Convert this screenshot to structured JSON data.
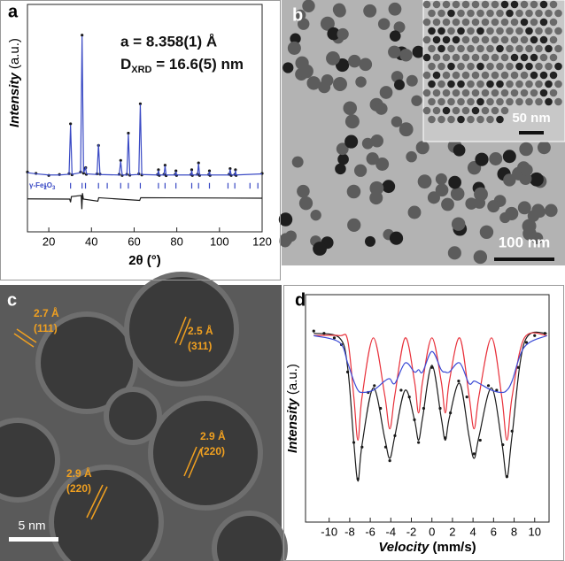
{
  "chart_data": [
    {
      "type": "line",
      "label": "a",
      "x_label": "2θ (°)",
      "y_label": [
        "Intensity",
        " (a.u.)"
      ],
      "annotations": [
        "a = 8.358(1) Å"
      ],
      "size_label": [
        "D",
        "XRD",
        " = 16.6(5) nm"
      ],
      "phase_label": [
        "γ-Fe",
        "2",
        "O",
        "3"
      ],
      "xlim": [
        10,
        120
      ],
      "xticks": [
        20,
        40,
        60,
        80,
        100,
        120
      ],
      "ylim": [
        0,
        100
      ],
      "series": [
        {
          "marker": true,
          "color": "#1a1a1a",
          "x": [
            10,
            14,
            20,
            25,
            29.5,
            30.2,
            30.9,
            34.9,
            35.6,
            36.3,
            37.0,
            37.3,
            37.6,
            42.6,
            43.3,
            44.0,
            53.0,
            53.7,
            54.4,
            56.6,
            57.3,
            58.0,
            62.2,
            62.9,
            63.6,
            71.0,
            71.4,
            71.8,
            74.0,
            74.5,
            75.0,
            79.3,
            79.6,
            79.9,
            86.7,
            87.0,
            87.3,
            89.7,
            90.2,
            90.7,
            95.0,
            95.3,
            95.6,
            104.5,
            105.0,
            105.5,
            107.2,
            107.5,
            107.8,
            120
          ],
          "values": [
            26.3,
            25.7,
            24.8,
            25.2,
            25.6,
            47.5,
            25.1,
            26.3,
            86.5,
            25.8,
            27.8,
            28.2,
            25.3,
            25.5,
            38,
            25.4,
            25.3,
            31.4,
            24.8,
            25.3,
            43.4,
            24.9,
            25.5,
            56.3,
            25,
            25.2,
            27.3,
            24.8,
            25.3,
            29.3,
            24.7,
            25.3,
            26.8,
            24.8,
            25.2,
            27.3,
            24.8,
            25.3,
            30.3,
            24.8,
            25.2,
            26.8,
            24.8,
            25.3,
            27.8,
            24.8,
            25.2,
            27.3,
            24.8,
            25.7
          ]
        },
        {
          "marker": false,
          "color": "#3949c4",
          "x": [
            10,
            14,
            20,
            25,
            29.5,
            30.2,
            30.9,
            34.9,
            35.6,
            36.3,
            37.0,
            37.3,
            37.6,
            42.6,
            43.3,
            44.0,
            53.0,
            53.7,
            54.4,
            56.6,
            57.3,
            58.0,
            62.2,
            62.9,
            63.6,
            71.0,
            71.4,
            71.8,
            74.0,
            74.5,
            75.0,
            79.3,
            79.6,
            79.9,
            86.7,
            87.0,
            87.3,
            89.7,
            90.2,
            90.7,
            95.0,
            95.3,
            95.6,
            104.5,
            105.0,
            105.5,
            107.2,
            107.5,
            107.8,
            120
          ],
          "values": [
            26,
            25.5,
            25,
            25,
            25.3,
            47,
            25.3,
            26,
            86,
            26,
            27.5,
            28.5,
            25.5,
            25.2,
            38.5,
            25.2,
            25,
            31,
            25,
            25,
            43,
            25,
            25.2,
            56,
            25.2,
            25,
            27,
            25,
            25,
            29,
            25,
            25,
            26.5,
            25,
            25,
            27,
            25,
            25,
            30,
            25,
            25,
            26.5,
            25,
            25,
            27.5,
            25,
            25,
            27,
            25,
            25.5
          ]
        },
        {
          "marker": false,
          "color": "#1a1a1a",
          "x": [
            10,
            29.8,
            30.2,
            30.6,
            35.2,
            35.5,
            35.8,
            36.2,
            43.0,
            43.4,
            62.6,
            63.1,
            120
          ],
          "values": [
            14.5,
            14.4,
            13,
            15.5,
            16,
            10,
            17,
            14.4,
            13.5,
            15,
            13.8,
            15,
            14.8
          ]
        }
      ],
      "bragg_ticks": [
        18.3,
        30.2,
        35.6,
        37.2,
        43.3,
        47.4,
        53.7,
        57.3,
        62.9,
        71.4,
        74.5,
        79.6,
        87.0,
        90.2,
        95.3,
        104.0,
        107.2,
        114.3,
        118.0
      ],
      "bragg_color": "#3949c4"
    },
    {
      "type": "line",
      "label": "d",
      "x_label": [
        "Velocity",
        " (mm/s)"
      ],
      "y_label": [
        "Intensity",
        " (a.u.)"
      ],
      "xlim": [
        -12.3,
        11.4
      ],
      "xticks": [
        -10,
        -8,
        -6,
        -4,
        -2,
        0,
        2,
        4,
        6,
        8,
        10
      ],
      "ylim": [
        0,
        100
      ],
      "series": [
        {
          "marker": true,
          "color": "#1a1a1a",
          "x": [
            -11.5,
            -10.5,
            -9.5,
            -8.8,
            -8.2,
            -7.6,
            -7.2,
            -6.8,
            -6.2,
            -5.6,
            -5,
            -4.5,
            -4.1,
            -3.6,
            -3,
            -2.2,
            -1.7,
            -1.3,
            -0.8,
            0,
            0.8,
            1.3,
            1.8,
            2.6,
            3.4,
            4.1,
            4.7,
            5.5,
            6.3,
            6.9,
            7.3,
            7.8,
            8.4,
            9.2,
            10,
            11
          ],
          "values": [
            84,
            83,
            81,
            78,
            66,
            35,
            19,
            33,
            57,
            60,
            50,
            33,
            27,
            38,
            58,
            55,
            45,
            35,
            50,
            68,
            50,
            37,
            48,
            62,
            55,
            30,
            36,
            60,
            58,
            34,
            20,
            40,
            68,
            79,
            82,
            83
          ]
        },
        {
          "marker": false,
          "color": "#1a1a1a",
          "x": [
            -11.5,
            -9,
            -8.2,
            -7.6,
            -7.2,
            -6.8,
            -5.7,
            -4.6,
            -4.1,
            -3.6,
            -2.6,
            -1.7,
            -1.3,
            -0.9,
            0,
            0.9,
            1.3,
            1.7,
            2.7,
            3.6,
            4.1,
            4.6,
            5.8,
            6.8,
            7.3,
            7.8,
            9,
            11.2
          ],
          "values": [
            83,
            81,
            68,
            35,
            18,
            34,
            59,
            37,
            28,
            38,
            58,
            45,
            36,
            46,
            69,
            46,
            36,
            46,
            61,
            38,
            28,
            38,
            59,
            35,
            19.5,
            38,
            79,
            83
          ]
        },
        {
          "marker": false,
          "color": "#e8303a",
          "x": [
            -11.5,
            -9,
            -8.2,
            -7.6,
            -7.2,
            -6.8,
            -5.7,
            -4.6,
            -4.1,
            -3.6,
            -2.6,
            -1.7,
            -1.3,
            -0.9,
            0,
            0.9,
            1.3,
            1.7,
            2.7,
            3.6,
            4.1,
            4.6,
            5.8,
            6.8,
            7.3,
            7.8,
            9,
            11.2
          ],
          "values": [
            82,
            82,
            80,
            55,
            36,
            55,
            81,
            56,
            41,
            56,
            81,
            62,
            48,
            62,
            81,
            62,
            48,
            62,
            81,
            56,
            41,
            56,
            81,
            55,
            36,
            55,
            81,
            82
          ]
        },
        {
          "marker": false,
          "color": "#3b4ad6",
          "x": [
            -11.5,
            -9,
            -8.2,
            -7.6,
            -7.2,
            -6.8,
            -5.7,
            -4.6,
            -4.1,
            -3.6,
            -2.6,
            -1.7,
            -1.3,
            -0.9,
            0,
            0.9,
            1.3,
            1.7,
            2.7,
            3.6,
            4.1,
            4.6,
            5.8,
            6.8,
            7.3,
            7.8,
            9,
            11.2
          ],
          "values": [
            82,
            79,
            70,
            62,
            58,
            57,
            58,
            62,
            63,
            61,
            70,
            66,
            67,
            66,
            75,
            67,
            66,
            66,
            70,
            61,
            62,
            61,
            58,
            57,
            58,
            62,
            77,
            82
          ]
        }
      ]
    }
  ],
  "images": [
    {
      "label": "b",
      "scale_bars": [
        "100 nm",
        "50 nm"
      ]
    },
    {
      "label": "c",
      "scale_bar": "5 nm",
      "annotations": [
        "2.7 Å",
        "(111)",
        "2.5 Å",
        "(311)",
        "2.9 Å",
        "(220)",
        "2.9 Å",
        "(220)"
      ]
    }
  ]
}
